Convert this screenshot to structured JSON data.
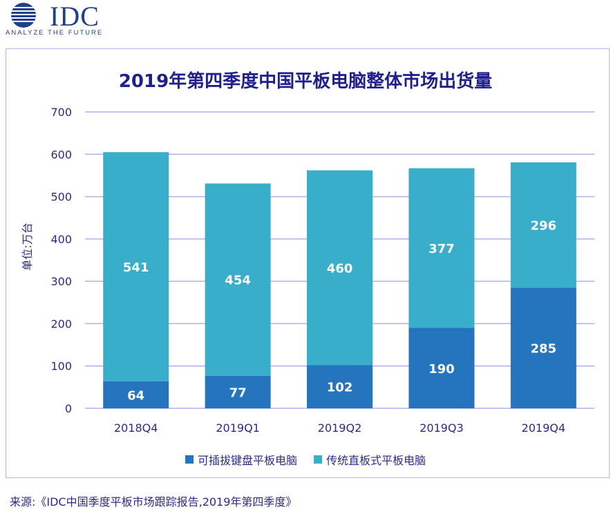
{
  "logo": {
    "text": "IDC",
    "tagline": "ANALYZE THE FUTURE"
  },
  "source": "来源:《IDC中国季度平板市场跟踪报告,2019年第四季度》",
  "colors": {
    "keyboard": "#2475BE",
    "traditional": "#39AECB",
    "grid": "#b0b0e8",
    "text": "#2a2a8f"
  },
  "chart_data": {
    "type": "bar",
    "stacked": true,
    "title": "2019年第四季度中国平板电脑整体市场出货量",
    "xlabel": "",
    "ylabel": "单位:万台",
    "ylim": [
      0,
      700
    ],
    "yticks": [
      0,
      100,
      200,
      300,
      400,
      500,
      600,
      700
    ],
    "categories": [
      "2018Q4",
      "2019Q1",
      "2019Q2",
      "2019Q3",
      "2019Q4"
    ],
    "series": [
      {
        "name": "可插拔键盘平板电脑",
        "values": [
          64,
          77,
          102,
          190,
          285
        ]
      },
      {
        "name": "传统直板式平板电脑",
        "values": [
          541,
          454,
          460,
          377,
          296
        ]
      }
    ],
    "grid": true,
    "legend": "bottom"
  }
}
